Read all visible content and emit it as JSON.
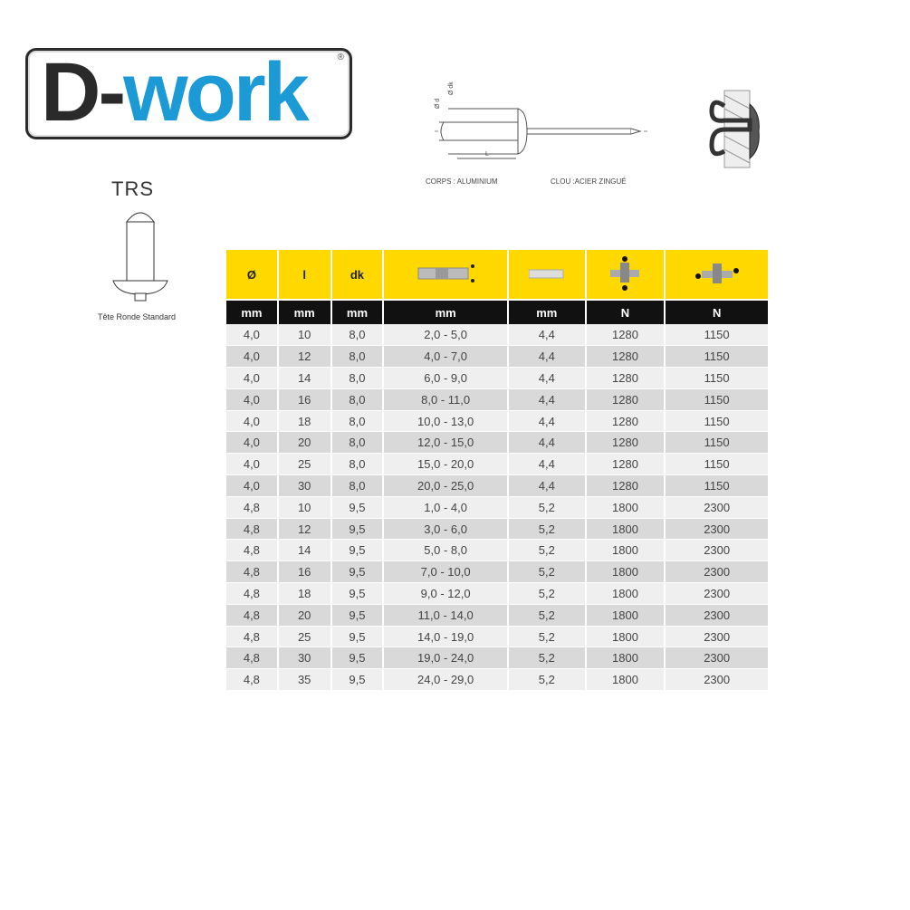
{
  "brand": {
    "part1": "D-",
    "part2": "work",
    "reg": "®",
    "accent": "#1b9ad6"
  },
  "product": {
    "code": "TRS",
    "caption": "Tête Ronde Standard"
  },
  "materials": {
    "body": "CORPS : ALUMINIUM",
    "mandrel": "CLOU :ACIER ZINGUÉ"
  },
  "diagram_labels": {
    "d": "Ø d",
    "dk": "Ø dk",
    "l": "L"
  },
  "table": {
    "headers": [
      "Ø",
      "l",
      "dk",
      "grip-range-icon",
      "drill-hole-icon",
      "shear-force-icon",
      "tensile-force-icon"
    ],
    "header_text": [
      "Ø",
      "l",
      "dk",
      "",
      "",
      "",
      ""
    ],
    "units": [
      "mm",
      "mm",
      "mm",
      "mm",
      "mm",
      "N",
      "N"
    ],
    "rows": [
      [
        "4,0",
        "10",
        "8,0",
        "2,0 - 5,0",
        "4,4",
        "1280",
        "1150"
      ],
      [
        "4,0",
        "12",
        "8,0",
        "4,0 - 7,0",
        "4,4",
        "1280",
        "1150"
      ],
      [
        "4,0",
        "14",
        "8,0",
        "6,0 - 9,0",
        "4,4",
        "1280",
        "1150"
      ],
      [
        "4,0",
        "16",
        "8,0",
        "8,0 - 11,0",
        "4,4",
        "1280",
        "1150"
      ],
      [
        "4,0",
        "18",
        "8,0",
        "10,0 - 13,0",
        "4,4",
        "1280",
        "1150"
      ],
      [
        "4,0",
        "20",
        "8,0",
        "12,0 - 15,0",
        "4,4",
        "1280",
        "1150"
      ],
      [
        "4,0",
        "25",
        "8,0",
        "15,0 - 20,0",
        "4,4",
        "1280",
        "1150"
      ],
      [
        "4,0",
        "30",
        "8,0",
        "20,0 - 25,0",
        "4,4",
        "1280",
        "1150"
      ],
      [
        "4,8",
        "10",
        "9,5",
        "1,0 - 4,0",
        "5,2",
        "1800",
        "2300"
      ],
      [
        "4,8",
        "12",
        "9,5",
        "3,0 - 6,0",
        "5,2",
        "1800",
        "2300"
      ],
      [
        "4,8",
        "14",
        "9,5",
        "5,0 - 8,0",
        "5,2",
        "1800",
        "2300"
      ],
      [
        "4,8",
        "16",
        "9,5",
        "7,0 - 10,0",
        "5,2",
        "1800",
        "2300"
      ],
      [
        "4,8",
        "18",
        "9,5",
        "9,0 - 12,0",
        "5,2",
        "1800",
        "2300"
      ],
      [
        "4,8",
        "20",
        "9,5",
        "11,0 - 14,0",
        "5,2",
        "1800",
        "2300"
      ],
      [
        "4,8",
        "25",
        "9,5",
        "14,0 - 19,0",
        "5,2",
        "1800",
        "2300"
      ],
      [
        "4,8",
        "30",
        "9,5",
        "19,0 - 24,0",
        "5,2",
        "1800",
        "2300"
      ],
      [
        "4,8",
        "35",
        "9,5",
        "24,0 - 29,0",
        "5,2",
        "1800",
        "2300"
      ]
    ]
  }
}
